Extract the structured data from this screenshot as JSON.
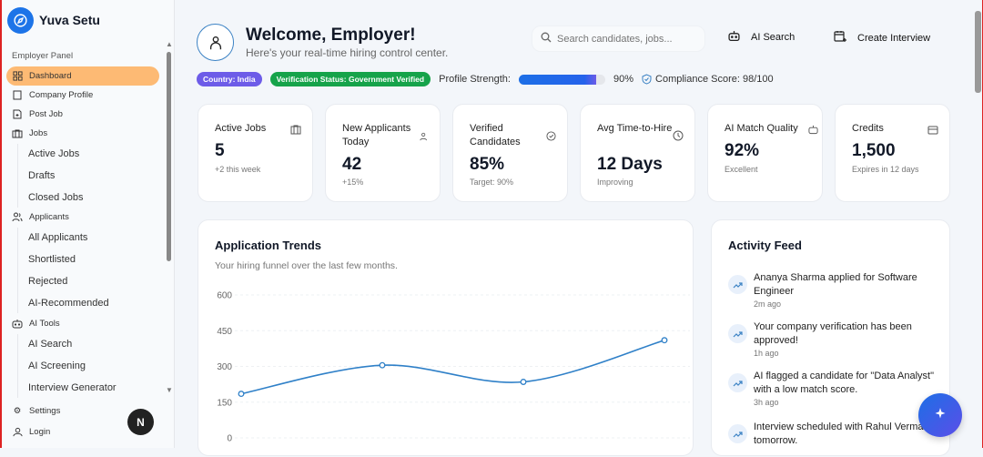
{
  "brand": {
    "name": "Yuva Setu"
  },
  "sidebar": {
    "section_label": "Employer Panel",
    "items": [
      {
        "label": "Dashboard",
        "icon": "grid-icon",
        "active": true
      },
      {
        "label": "Company Profile",
        "icon": "building-icon"
      },
      {
        "label": "Post Job",
        "icon": "file-plus-icon"
      },
      {
        "label": "Jobs",
        "icon": "briefcase-icon"
      },
      {
        "label": "Applicants",
        "icon": "users-icon"
      },
      {
        "label": "AI Tools",
        "icon": "bot-icon"
      },
      {
        "label": "Settings",
        "icon": "gear-icon"
      },
      {
        "label": "Login",
        "icon": "user-icon"
      }
    ],
    "jobs_sub": [
      "Active Jobs",
      "Drafts",
      "Closed Jobs"
    ],
    "applicants_sub": [
      "All Applicants",
      "Shortlisted",
      "Rejected",
      "AI-Recommended"
    ],
    "ai_sub": [
      "AI Search",
      "AI Screening",
      "Interview Generator"
    ],
    "badge": "N"
  },
  "header": {
    "title": "Welcome, Employer!",
    "subtitle": "Here's your real-time hiring control center.",
    "search_placeholder": "Search candidates, jobs...",
    "ai_search": "AI Search",
    "create_interview": "Create Interview",
    "country": "Country: India",
    "verification": "Verification Status: Government Verified",
    "profile_strength_label": "Profile Strength:",
    "profile_strength": 90,
    "profile_strength_text": "90%",
    "compliance": "Compliance Score: 98/100"
  },
  "colors": {
    "accent": "#1d74e8",
    "active_nav": "#fdba74",
    "country_pill": "#6d5ce8",
    "verified_pill": "#16a34a",
    "line": "#2f80c8"
  },
  "stats": [
    {
      "label": "Active Jobs",
      "value": "5",
      "note": "+2 this week",
      "icon": "briefcase-icon"
    },
    {
      "label": "New Applicants Today",
      "value": "42",
      "note": "+15%",
      "icon": "users-icon"
    },
    {
      "label": "Verified Candidates",
      "value": "85%",
      "note": "Target: 90%",
      "icon": "check-circle-icon"
    },
    {
      "label": "Avg Time-to-Hire",
      "value": "12 Days",
      "note": "Improving",
      "icon": "clock-icon"
    },
    {
      "label": "AI Match Quality",
      "value": "92%",
      "note": "Excellent",
      "icon": "bot-icon"
    },
    {
      "label": "Credits",
      "value": "1,500",
      "note": "Expires in 12 days",
      "icon": "credit-card-icon"
    }
  ],
  "trends": {
    "title": "Application Trends",
    "desc": "Your hiring funnel over the last few months."
  },
  "chart_data": {
    "type": "line",
    "y": [
      185,
      305,
      235,
      410
    ],
    "yticks": [
      "600",
      "450",
      "300",
      "150",
      "0"
    ],
    "ylim": [
      0,
      600
    ],
    "grid": true,
    "smooth": true
  },
  "feed": {
    "title": "Activity Feed",
    "items": [
      {
        "text": "Ananya Sharma applied for Software Engineer",
        "time": "2m ago"
      },
      {
        "text": "Your company verification has been approved!",
        "time": "1h ago"
      },
      {
        "text": "AI flagged a candidate for \"Data Analyst\" with a low match score.",
        "time": "3h ago"
      },
      {
        "text": "Interview scheduled with Rahul Verma for tomorrow.",
        "time": ""
      }
    ]
  }
}
